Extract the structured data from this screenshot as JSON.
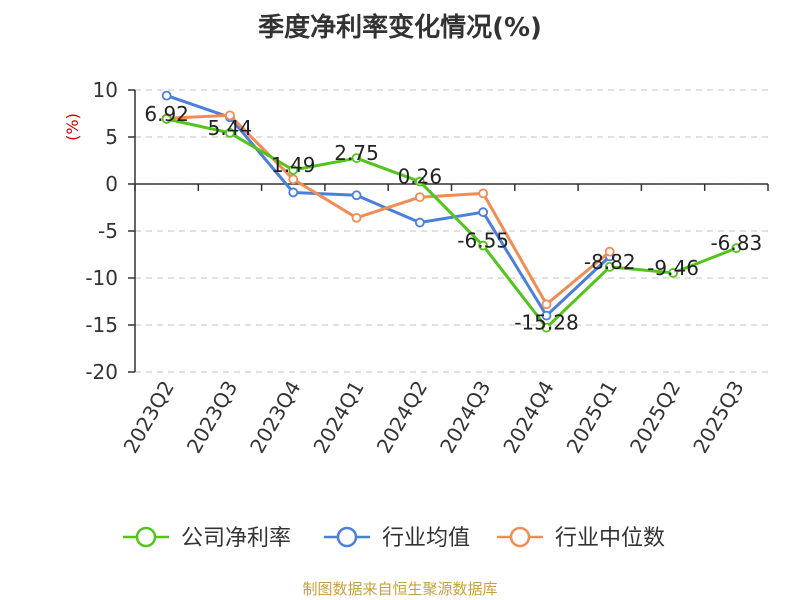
{
  "chart_data": {
    "type": "line",
    "title": "季度净利率变化情况(%)",
    "ylabel": "(%)",
    "categories": [
      "2023Q2",
      "2023Q3",
      "2023Q4",
      "2024Q1",
      "2024Q2",
      "2024Q3",
      "2024Q4",
      "2025Q1",
      "2025Q2",
      "2025Q3"
    ],
    "ylim": [
      -20,
      10
    ],
    "yticks": [
      10,
      5,
      0,
      -5,
      -10,
      -15,
      -20
    ],
    "grid": true,
    "legend_position": "bottom",
    "series": [
      {
        "name": "公司净利率",
        "color": "#52c41a",
        "values": [
          6.92,
          5.44,
          1.49,
          2.75,
          0.26,
          -6.55,
          -15.28,
          -8.82,
          -9.46,
          -6.83
        ],
        "labels": [
          "6.92",
          "5.44",
          "1.49",
          "2.75",
          "0.26",
          "-6.55",
          "-15.28",
          "-8.82",
          "-9.46",
          "-6.83"
        ]
      },
      {
        "name": "行业均值",
        "color": "#4a7fdc",
        "values": [
          9.4,
          7.1,
          -0.9,
          -1.2,
          -4.1,
          -3.0,
          -14.0,
          -7.7,
          null,
          null
        ]
      },
      {
        "name": "行业中位数",
        "color": "#f28c55",
        "values": [
          7.0,
          7.3,
          0.5,
          -3.6,
          -1.4,
          -1.0,
          -12.8,
          -7.2,
          null,
          null
        ]
      }
    ]
  },
  "source": "制图数据来自恒生聚源数据库"
}
